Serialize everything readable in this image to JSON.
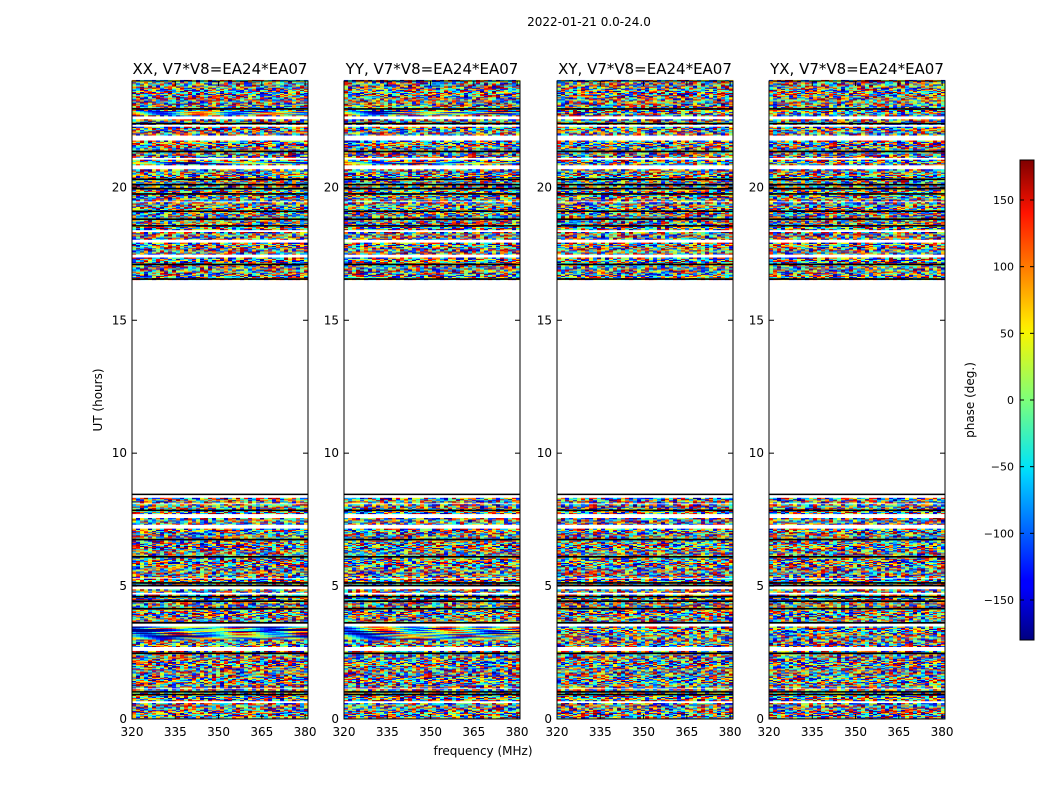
{
  "figure": {
    "suptitle": "2022-01-21 0.0-24.0",
    "xlabel": "frequency (MHz)",
    "ylabel": "UT (hours)"
  },
  "chart_data": {
    "type": "heatmap",
    "title": "2022-01-21 0.0-24.0",
    "xlabel": "frequency (MHz)",
    "ylabel": "UT (hours)",
    "xlim": [
      320,
      381
    ],
    "ylim": [
      0,
      24
    ],
    "x_ticks": [
      320,
      335,
      350,
      365,
      380
    ],
    "y_ticks": [
      0,
      5,
      10,
      15,
      20
    ],
    "panels": [
      {
        "title": "XX, V7*V8=EA24*EA07"
      },
      {
        "title": "YY, V7*V8=EA24*EA07"
      },
      {
        "title": "XY, V7*V8=EA24*EA07"
      },
      {
        "title": "YX, V7*V8=EA24*EA07"
      }
    ],
    "data_coverage_ut": [
      [
        0,
        8.5
      ],
      [
        16.5,
        24
      ]
    ],
    "gap_ut": [
      8.5,
      16.5
    ],
    "colorbar": {
      "label": "phase (deg.)",
      "range": [
        -180,
        180
      ],
      "ticks": [
        -150,
        -100,
        -50,
        0,
        50,
        100,
        150
      ],
      "colormap": "jet"
    }
  }
}
